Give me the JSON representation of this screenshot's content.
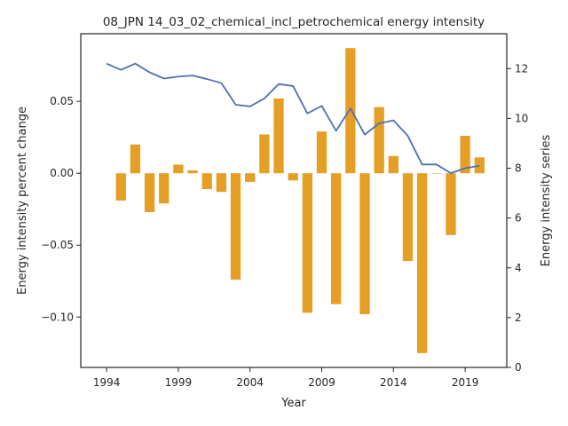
{
  "chart_data": {
    "type": "bar+line",
    "title": "08_JPN 14_03_02_chemical_incl_petrochemical energy intensity",
    "xlabel": "Year",
    "ylabel_left": "Energy intensity percent change",
    "ylabel_right": "Energy intensity series",
    "x_ticks": [
      "1994",
      "1999",
      "2004",
      "2009",
      "2014",
      "2019"
    ],
    "y_left_ticks": [
      "0.05",
      "0.00",
      "−0.05",
      "−0.10"
    ],
    "y_right_ticks": [
      "0",
      "2",
      "4",
      "6",
      "8",
      "10",
      "12"
    ],
    "xlim": [
      1992.2,
      2021.9
    ],
    "ylim_left": [
      -0.135,
      0.097
    ],
    "ylim_right": [
      0,
      13.4
    ],
    "grid": false,
    "bar_color": "#e69f25",
    "line_color": "#4c72b0",
    "years": [
      1994,
      1995,
      1996,
      1997,
      1998,
      1999,
      2000,
      2001,
      2002,
      2003,
      2004,
      2005,
      2006,
      2007,
      2008,
      2009,
      2010,
      2011,
      2012,
      2013,
      2014,
      2015,
      2016,
      2017,
      2018,
      2019,
      2020
    ],
    "percent_change": [
      null,
      -0.019,
      0.02,
      -0.027,
      -0.021,
      0.006,
      0.002,
      -0.011,
      -0.013,
      -0.074,
      -0.006,
      0.027,
      0.052,
      -0.005,
      -0.097,
      0.029,
      -0.091,
      0.087,
      -0.098,
      0.046,
      0.012,
      -0.061,
      -0.125,
      0.0,
      -0.043,
      0.026,
      0.011
    ],
    "series": [
      12.2,
      11.95,
      12.2,
      11.85,
      11.6,
      11.68,
      11.72,
      11.58,
      11.42,
      10.55,
      10.48,
      10.8,
      11.38,
      11.3,
      10.2,
      10.5,
      9.5,
      10.4,
      9.35,
      9.8,
      9.92,
      9.3,
      8.15,
      8.15,
      7.8,
      8.0,
      8.1
    ]
  }
}
